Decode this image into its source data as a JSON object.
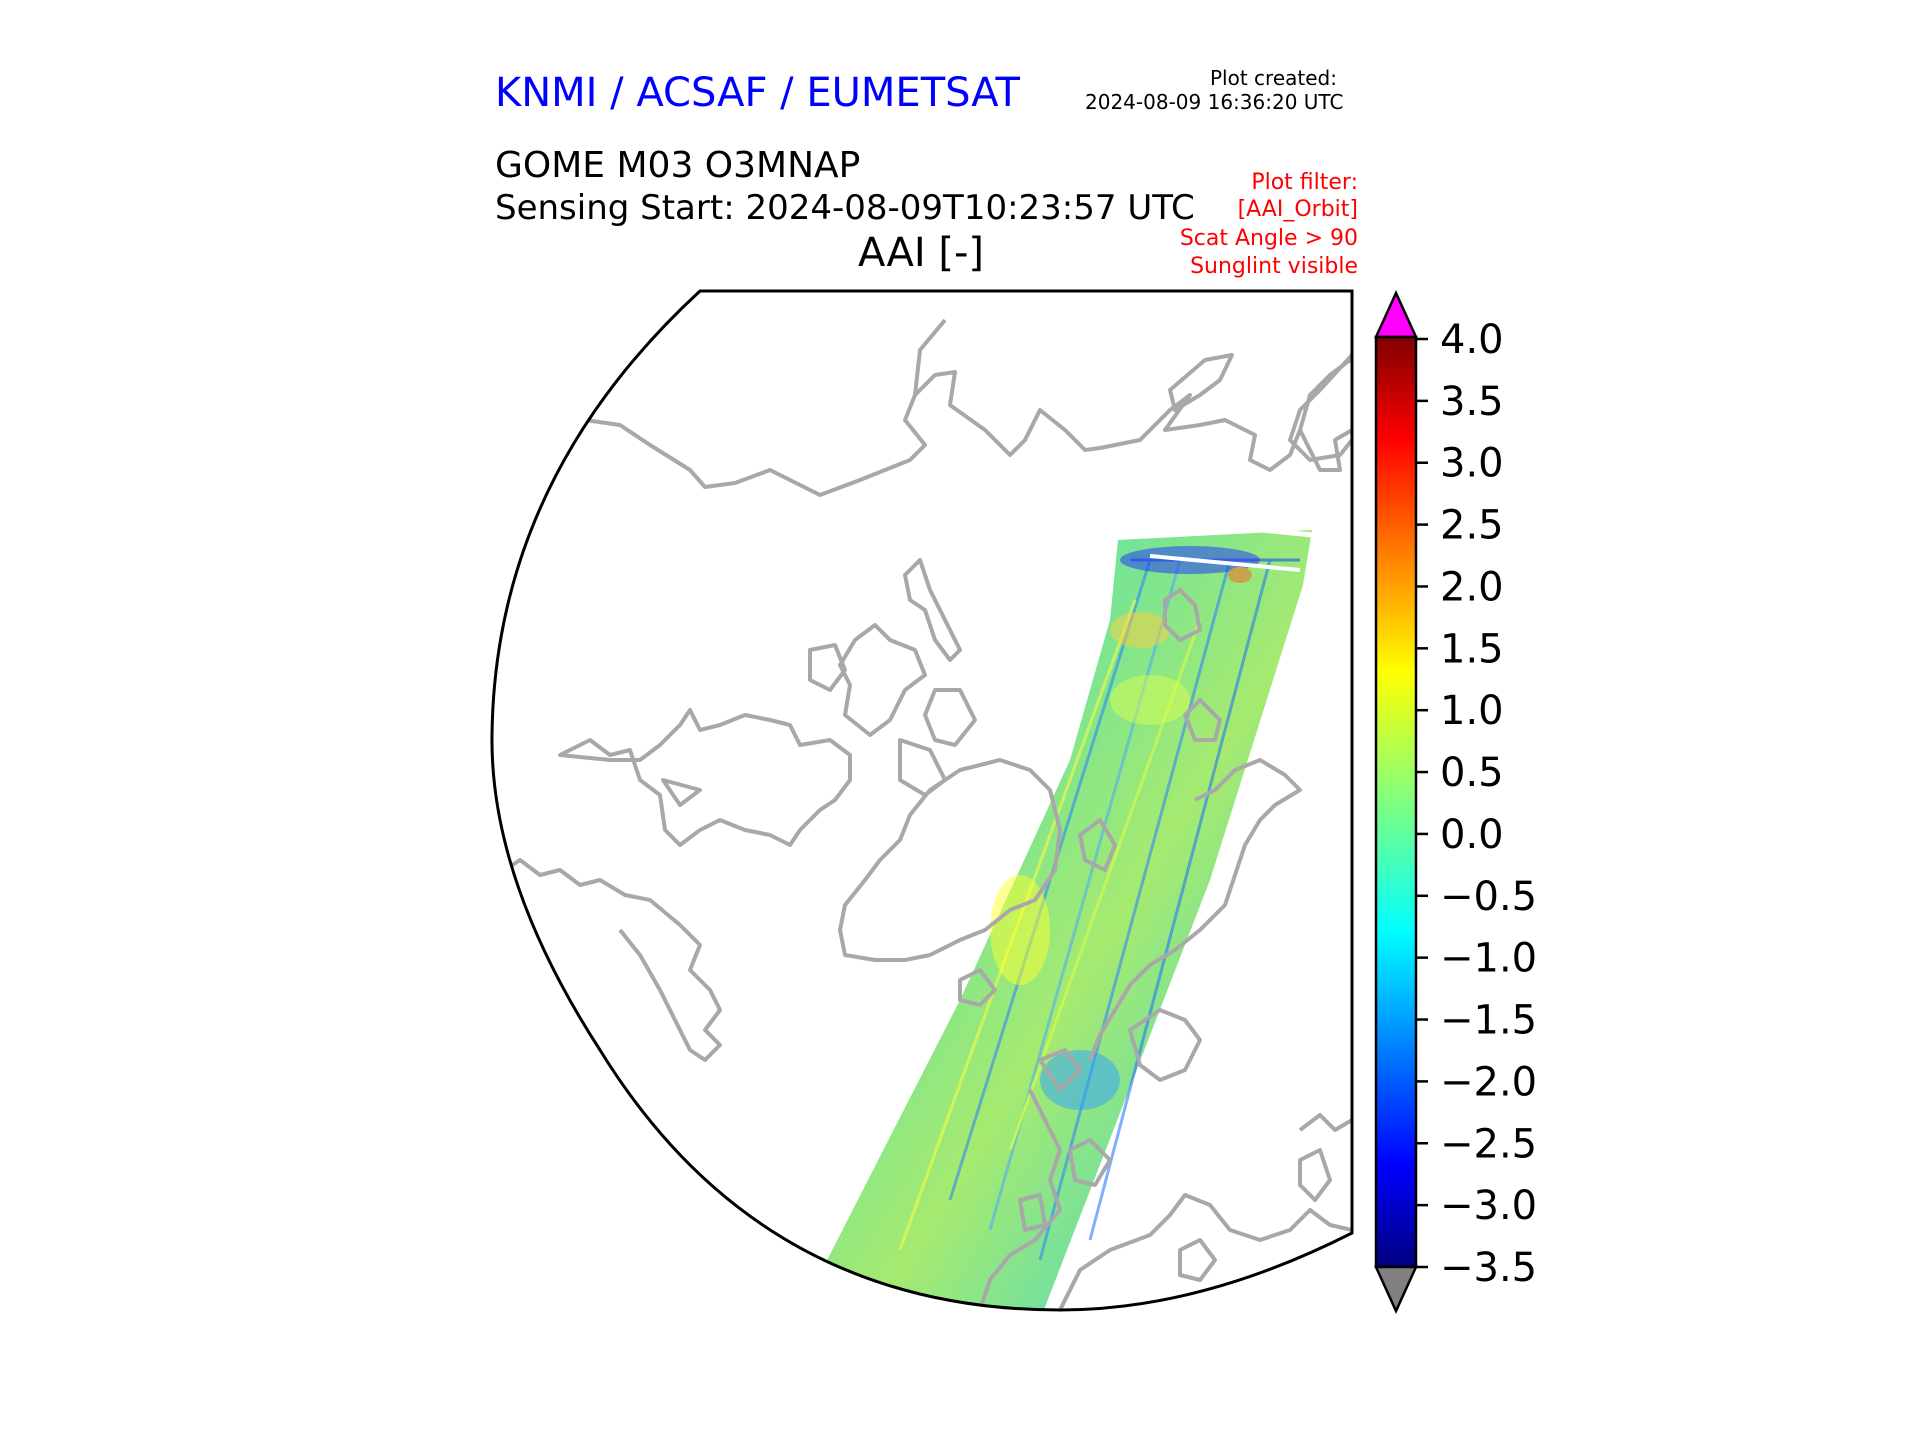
{
  "header": {
    "organization": "KNMI / ACSAF / EUMETSAT",
    "plot_created_label": "Plot created:",
    "plot_created_time": "2024-08-09 16:36:20 UTC",
    "product": "GOME M03 O3MNAP",
    "sensing_start": "Sensing Start: 2024-08-09T10:23:57 UTC",
    "variable": "AAI [-]"
  },
  "plot_filter": {
    "title": "Plot filter:",
    "lines": [
      "[AAI_Orbit]",
      "Scat Angle > 90",
      "Sunglint visible"
    ]
  },
  "colorbar": {
    "min": -3.5,
    "max": 4.0,
    "ticks": [
      "4.0",
      "3.5",
      "3.0",
      "2.5",
      "2.0",
      "1.5",
      "1.0",
      "0.5",
      "0.0",
      "−0.5",
      "−1.0",
      "−1.5",
      "−2.0",
      "−2.5",
      "−3.0",
      "−3.5"
    ],
    "extend_max_color": "#ff00ff",
    "extend_min_color": "#808080",
    "colormap": "jet"
  },
  "map": {
    "projection": "north polar stereographic",
    "coastline_color": "#a8a8a8",
    "swath_color_dominant": "#5fe0a0"
  }
}
